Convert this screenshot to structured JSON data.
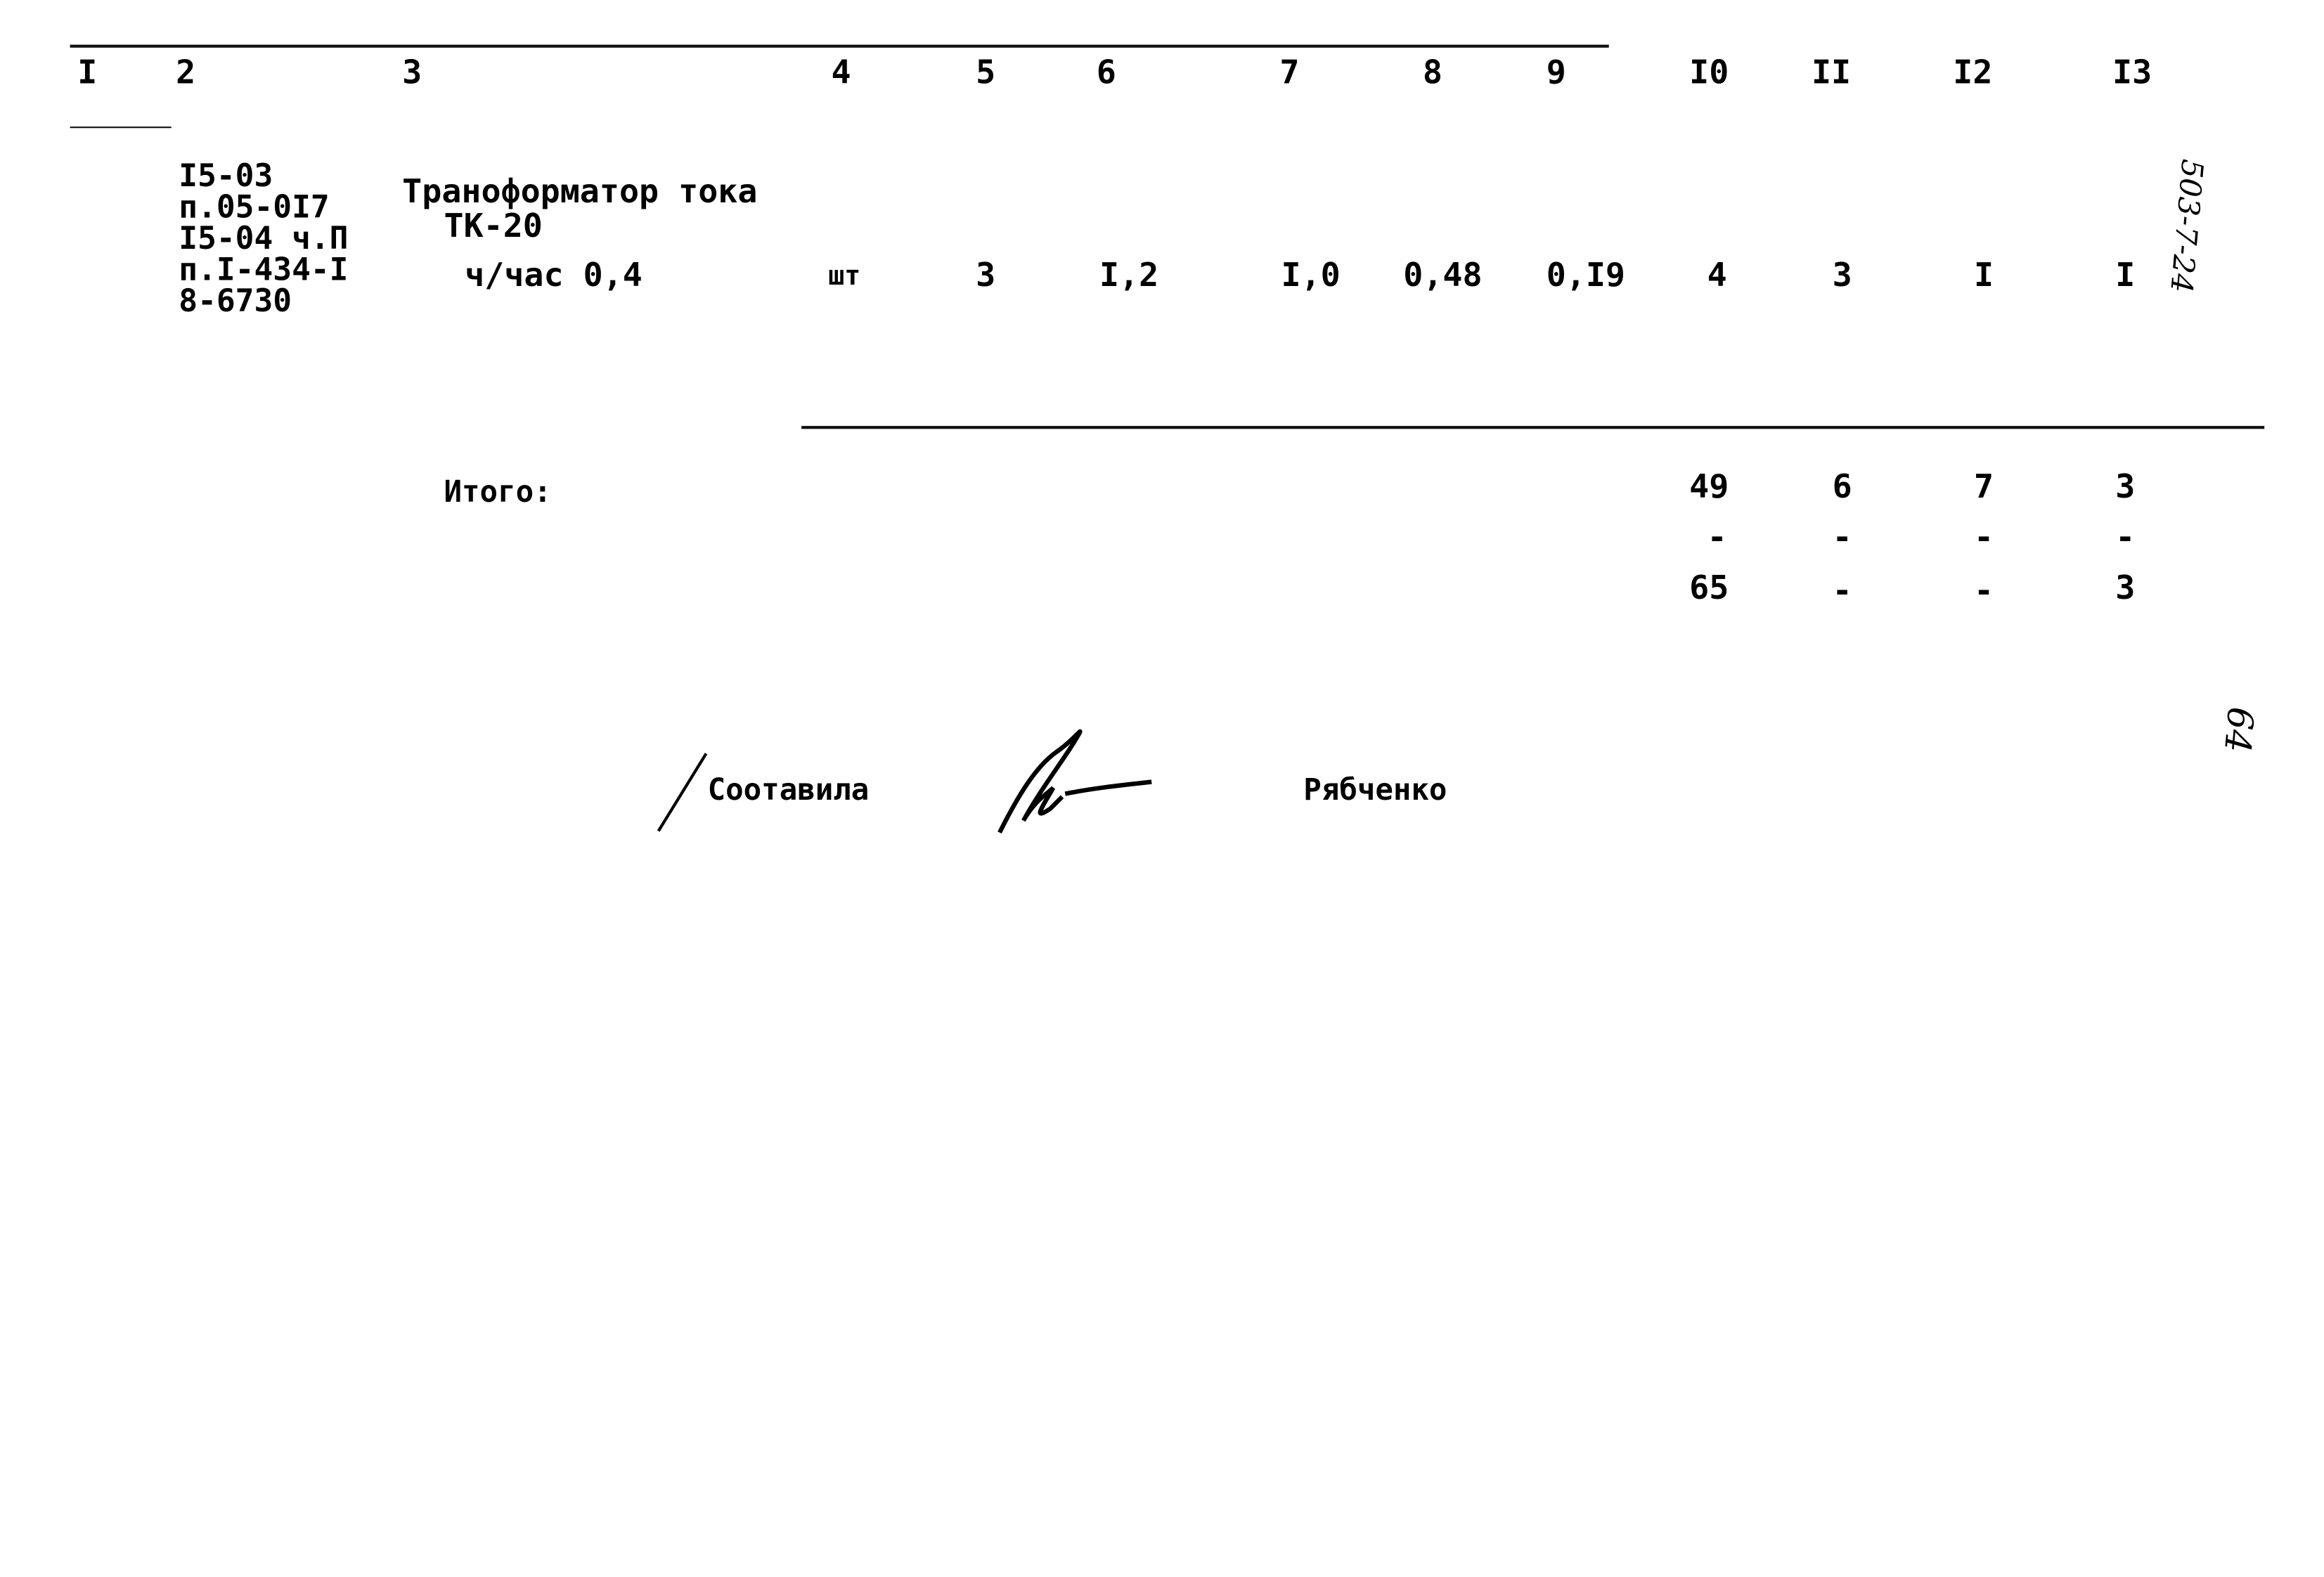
{
  "header": {
    "columns": [
      "I",
      "2",
      "3",
      "4",
      "5",
      "6",
      "7",
      "8",
      "9",
      "I0",
      "II",
      "I2",
      "I3"
    ]
  },
  "row": {
    "ref_lines": [
      "I5-03",
      "п.05-0I7",
      "I5-04 ч.П",
      "п.I-434-I",
      "8-6730"
    ],
    "name_line1": "Траноформатор тока",
    "name_line2": "ТК-20",
    "name_line3": "ч/час 0,4",
    "unit": "шт",
    "values": [
      "3",
      "I,2",
      "I,0",
      "0,48",
      "0,I9",
      "4",
      "3",
      "I",
      "I"
    ]
  },
  "margin_note": "503-7-24",
  "totals": {
    "label": "Итого:",
    "line1": [
      "49",
      "6",
      "7",
      "3"
    ],
    "line2": [
      "-",
      "-",
      "-",
      "-"
    ],
    "line3": [
      "65",
      "-",
      "-",
      "3"
    ]
  },
  "signature": {
    "label": "Соотавила",
    "name": "Рябченко"
  },
  "page_number": "64"
}
